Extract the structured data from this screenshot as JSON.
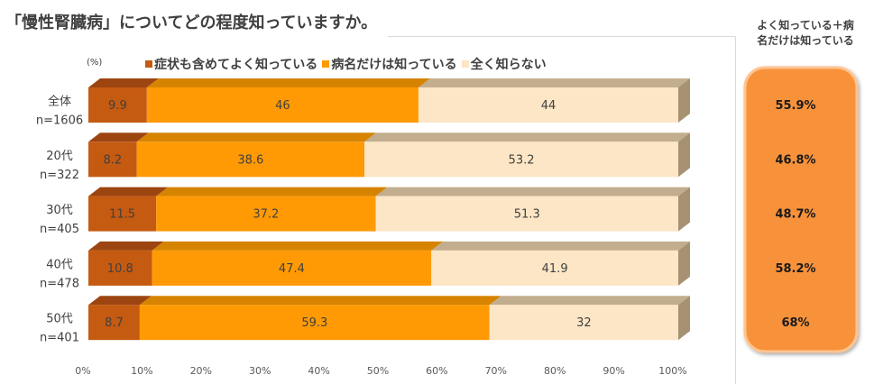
{
  "chart_data": {
    "type": "bar",
    "orientation": "horizontal",
    "stacking": "percent",
    "three_d": true,
    "title": "「慢性腎臓病」についてどの程度知っていますか。",
    "unit_label": "(%)",
    "categories": [
      "全体",
      "20代",
      "30代",
      "40代",
      "50代"
    ],
    "category_sublabels": [
      "n=1606",
      "n=322",
      "n=405",
      "n=478",
      "n=401"
    ],
    "series": [
      {
        "name": "症状も含めてよく知っている",
        "color": "#C55A11",
        "top_color": "#9C4510",
        "side_color": "#8A3C0C",
        "values": [
          9.9,
          8.2,
          11.5,
          10.8,
          8.7
        ]
      },
      {
        "name": "病名だけは知っている",
        "color": "#FF9A05",
        "top_color": "#D68300",
        "side_color": "#B86F00",
        "values": [
          46,
          38.6,
          37.2,
          47.4,
          59.3
        ]
      },
      {
        "name": "全く知らない",
        "color": "#FCE6C5",
        "top_color": "#C2AE8E",
        "side_color": "#A69273",
        "values": [
          44,
          53.2,
          51.3,
          41.9,
          32
        ]
      }
    ],
    "xlim": [
      0,
      100
    ],
    "xtick_values": [
      0,
      10,
      20,
      30,
      40,
      50,
      60,
      70,
      80,
      90,
      100
    ],
    "xtick_labels": [
      "0%",
      "10%",
      "20%",
      "30%",
      "40%",
      "50%",
      "60%",
      "70%",
      "80%",
      "90%",
      "100%"
    ],
    "legend_position": "top",
    "grid": false,
    "data_labels": true,
    "summary_column": {
      "heading_lines": [
        "よく知っている＋病",
        "名だけは知っている"
      ],
      "values": [
        "55.9%",
        "46.8%",
        "48.7%",
        "58.2%",
        "68%"
      ],
      "color": "#F7923A",
      "border_color": "#FFC48F"
    }
  }
}
